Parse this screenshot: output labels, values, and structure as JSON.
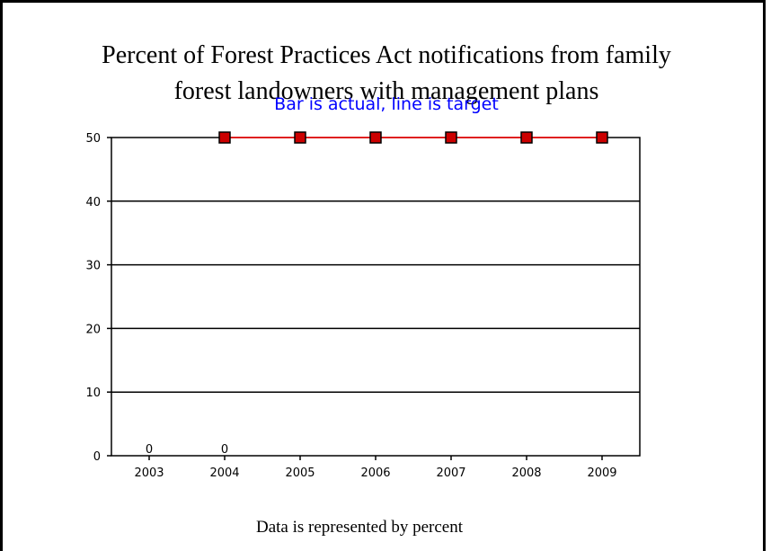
{
  "chart_data": {
    "type": "bar",
    "title_line1": "Percent of Forest Practices Act notifications from family",
    "title_line2": "forest landowners with management plans",
    "subtitle": "Bar is actual, line is target",
    "footer": "Data is represented by percent",
    "categories": [
      "2003",
      "2004",
      "2005",
      "2006",
      "2007",
      "2008",
      "2009"
    ],
    "ylim": [
      0,
      50
    ],
    "yticks": [
      0,
      10,
      20,
      30,
      40,
      50
    ],
    "grid": true,
    "series": [
      {
        "kind": "bar",
        "values": [
          0,
          0,
          null,
          null,
          null,
          null,
          null
        ],
        "data_labels": [
          "0",
          "0",
          "",
          "",
          "",
          "",
          ""
        ]
      },
      {
        "kind": "line",
        "values": [
          null,
          50,
          50,
          50,
          50,
          50,
          50
        ],
        "color": "#ff0000",
        "marker_color": "#cc0000"
      }
    ]
  }
}
